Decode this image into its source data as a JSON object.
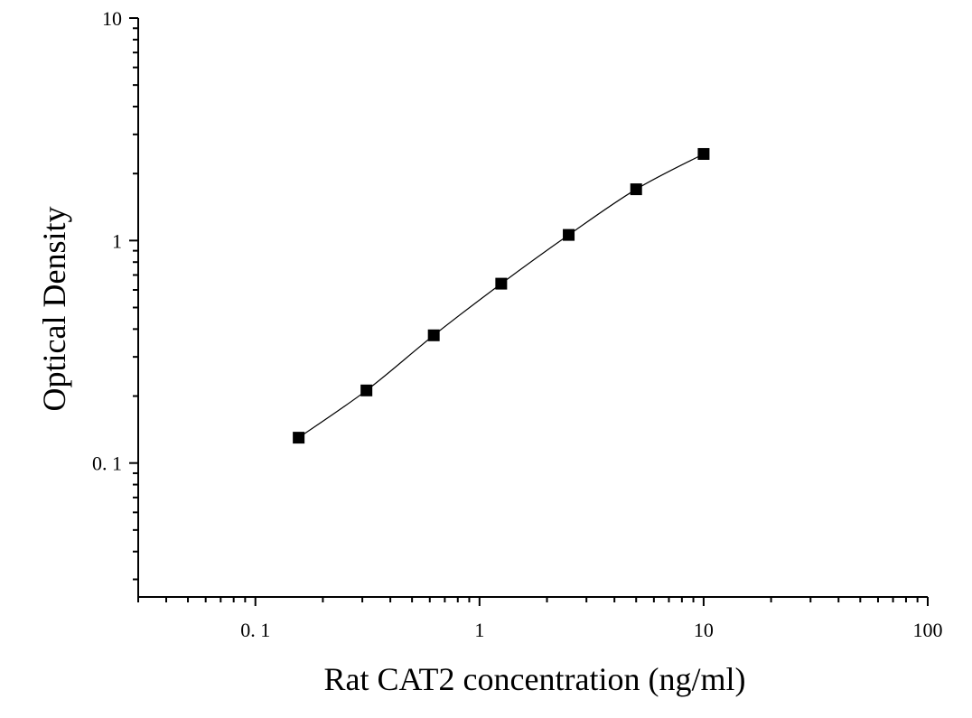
{
  "chart_data": {
    "type": "scatter",
    "xlabel": "Rat CAT2 concentration (ng/ml)",
    "ylabel": "Optical Density",
    "x_scale": "log",
    "y_scale": "log",
    "xlim": [
      0.03,
      100
    ],
    "ylim": [
      0.025,
      10
    ],
    "x_ticks": [
      {
        "value": 0.1,
        "label": "0. 1"
      },
      {
        "value": 1,
        "label": "1"
      },
      {
        "value": 10,
        "label": "10"
      },
      {
        "value": 100,
        "label": "100"
      }
    ],
    "y_ticks": [
      {
        "value": 0.1,
        "label": "0. 1"
      },
      {
        "value": 1,
        "label": "1"
      },
      {
        "value": 10,
        "label": "10"
      }
    ],
    "grid": false,
    "marker": "square",
    "fit_line": true,
    "series": [
      {
        "points": [
          {
            "x": 0.156,
            "y": 0.13
          },
          {
            "x": 0.313,
            "y": 0.212
          },
          {
            "x": 0.625,
            "y": 0.375
          },
          {
            "x": 1.25,
            "y": 0.64
          },
          {
            "x": 2.5,
            "y": 1.06
          },
          {
            "x": 5,
            "y": 1.7
          },
          {
            "x": 10,
            "y": 2.45
          }
        ]
      }
    ],
    "colors": {
      "marker": "#000000",
      "line": "#000000",
      "axis": "#000000"
    }
  }
}
